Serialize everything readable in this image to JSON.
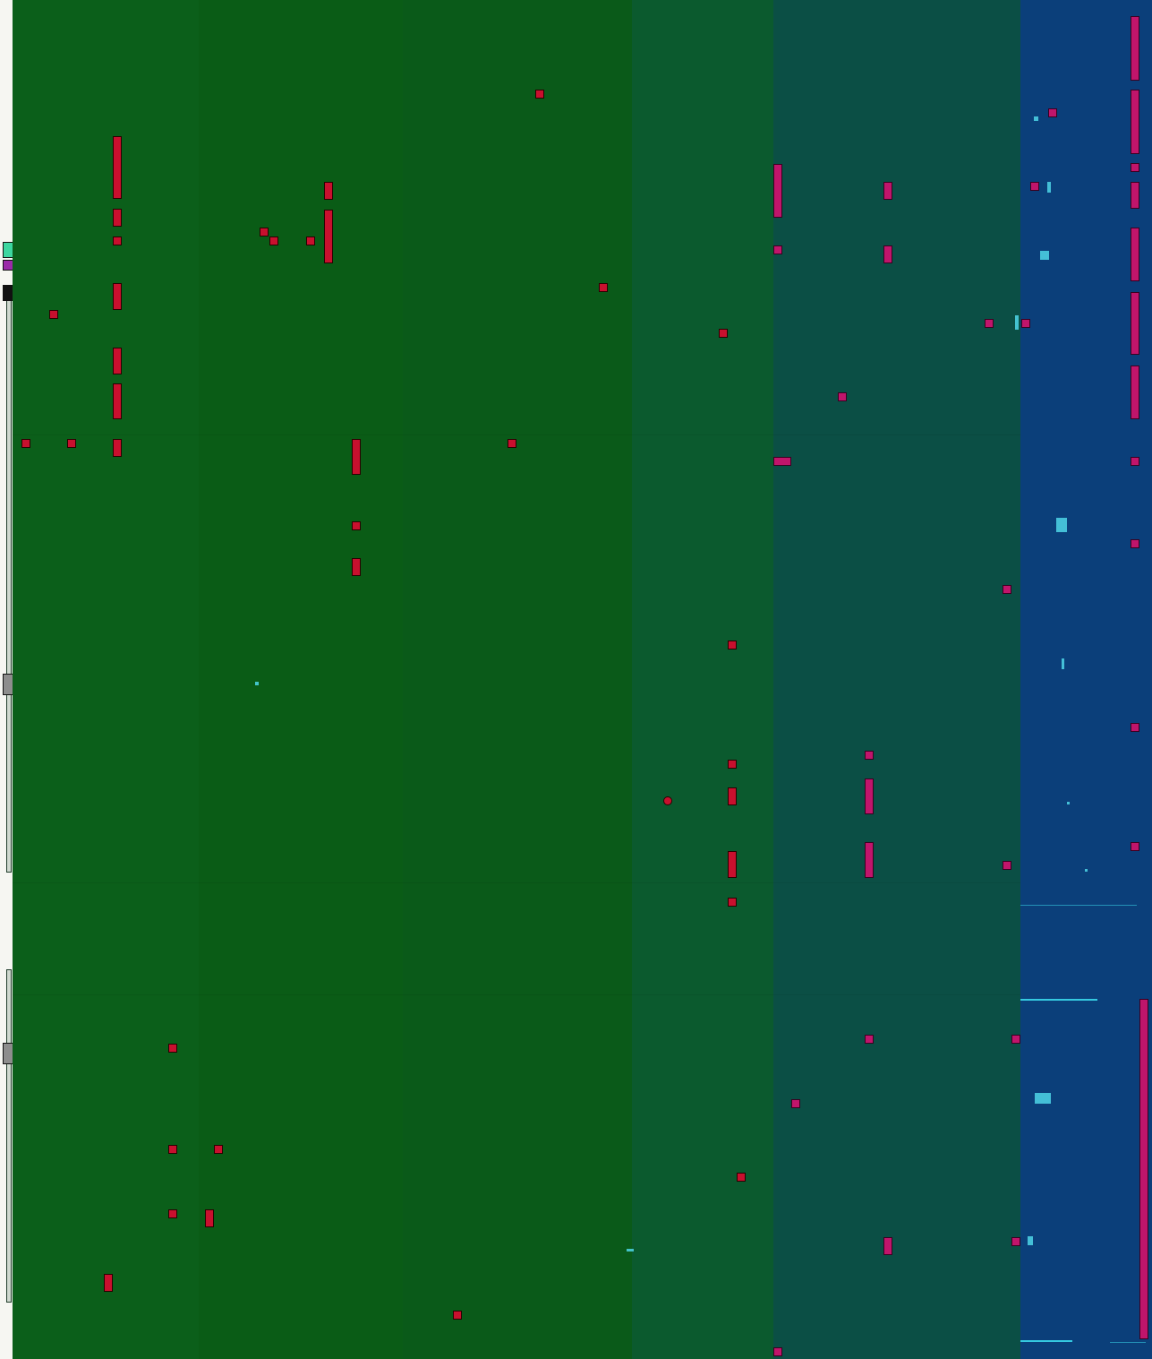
{
  "window": {
    "title": ""
  },
  "colors": {
    "left_background": "#f6f6f2",
    "band_green_1": "#0b5f1a",
    "band_green_2": "#0a5c16",
    "band_green_3": "#0a5a19",
    "band_green_4": "#0b5a2e",
    "band_teal": "#0b4f45",
    "band_blue": "#0b3f7a",
    "block_red": "#c8102e",
    "block_magenta": "#c0156b",
    "accent_cyan": "#35c9e0"
  },
  "bands": [
    {
      "name": "band-green-1",
      "color": "#0b5f1a"
    },
    {
      "name": "band-green-2",
      "color": "#0a5c16"
    },
    {
      "name": "band-green-3",
      "color": "#0a5a19"
    },
    {
      "name": "band-green-4",
      "color": "#0b5a2e"
    },
    {
      "name": "band-teal",
      "color": "#0b4f45"
    },
    {
      "name": "band-blue",
      "color": "#0b3f7a"
    }
  ]
}
